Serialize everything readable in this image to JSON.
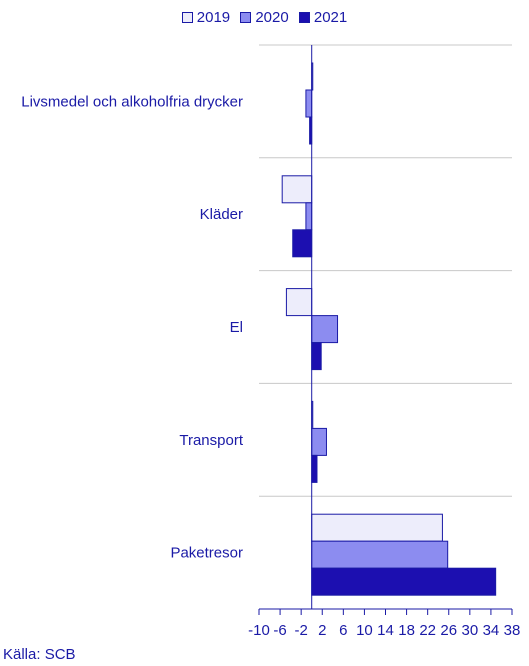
{
  "chart_data": {
    "type": "bar",
    "orientation": "horizontal",
    "categories": [
      "Livsmedel och alkoholfria drycker",
      "Kläder",
      "El",
      "Transport",
      "Paketresor"
    ],
    "series": [
      {
        "name": "2019",
        "color": "#ededfb",
        "values": [
          0.2,
          -5.6,
          -4.8,
          0.2,
          24.8
        ]
      },
      {
        "name": "2020",
        "color": "#8c8cf0",
        "values": [
          -1.1,
          -1.1,
          4.9,
          2.8,
          25.8
        ]
      },
      {
        "name": "2021",
        "color": "#1c0fb0",
        "values": [
          -0.4,
          -3.6,
          1.8,
          1.0,
          34.9
        ]
      }
    ],
    "xlim": [
      -10,
      38
    ],
    "xticks": [
      "-10",
      "-6",
      "-2",
      "2",
      "6",
      "10",
      "14",
      "18",
      "22",
      "26",
      "30",
      "34",
      "38"
    ],
    "legend_position": "top",
    "grid": false
  },
  "legend": {
    "items": [
      {
        "label": "2019",
        "color": "#ededfb"
      },
      {
        "label": "2020",
        "color": "#8c8cf0"
      },
      {
        "label": "2021",
        "color": "#1c0fb0"
      }
    ]
  },
  "source": "Källa: SCB",
  "colors": {
    "text": "#1a1aa6",
    "axis": "#1a1aa6",
    "separator": "#c8c8c8"
  }
}
